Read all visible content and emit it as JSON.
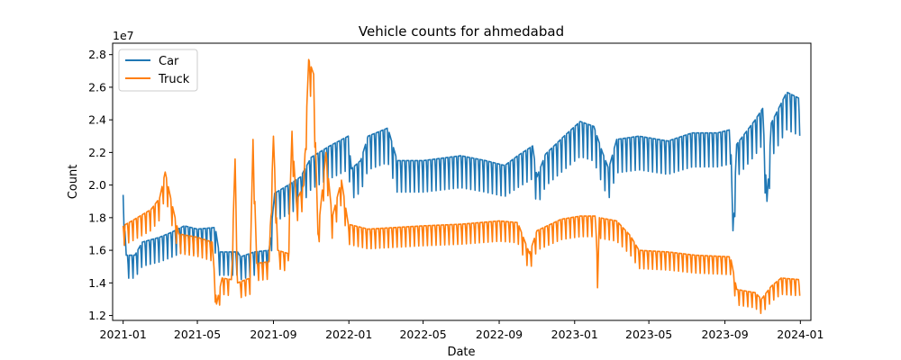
{
  "chart_data": {
    "type": "line",
    "title": "Vehicle counts for ahmedabad",
    "xlabel": "Date",
    "ylabel": "Count",
    "y_exponent_label": "1e7",
    "ylim": [
      11700000,
      28700000
    ],
    "xlim": [
      "2020-12-15",
      "2024-01-18"
    ],
    "x_ticks": [
      "2021-01",
      "2021-05",
      "2021-09",
      "2022-01",
      "2022-05",
      "2022-09",
      "2023-01",
      "2023-05",
      "2023-09",
      "2024-01"
    ],
    "y_ticks": [
      "1.2",
      "1.4",
      "1.6",
      "1.8",
      "2.0",
      "2.2",
      "2.4",
      "2.6",
      "2.8"
    ],
    "legend_position": "top-left",
    "grid": false,
    "series": [
      {
        "name": "Car",
        "color": "#1f77b4",
        "weekday_dip_pct": 9,
        "anchors": [
          [
            "2021-01-01",
            19400000
          ],
          [
            "2021-01-06",
            15700000
          ],
          [
            "2021-01-20",
            15700000
          ],
          [
            "2021-02-01",
            16500000
          ],
          [
            "2021-03-01",
            16800000
          ],
          [
            "2021-03-20",
            17100000
          ],
          [
            "2021-04-10",
            17500000
          ],
          [
            "2021-05-01",
            17300000
          ],
          [
            "2021-05-30",
            17400000
          ],
          [
            "2021-06-05",
            15900000
          ],
          [
            "2021-07-05",
            15900000
          ],
          [
            "2021-07-10",
            15600000
          ],
          [
            "2021-08-01",
            15900000
          ],
          [
            "2021-08-25",
            16000000
          ],
          [
            "2021-09-03",
            19500000
          ],
          [
            "2021-09-25",
            20000000
          ],
          [
            "2021-10-15",
            20500000
          ],
          [
            "2021-11-01",
            21700000
          ],
          [
            "2021-12-01",
            22400000
          ],
          [
            "2021-12-31",
            23000000
          ],
          [
            "2022-01-05",
            21000000
          ],
          [
            "2022-01-20",
            21500000
          ],
          [
            "2022-02-01",
            23000000
          ],
          [
            "2022-03-05",
            23500000
          ],
          [
            "2022-03-20",
            21500000
          ],
          [
            "2022-05-01",
            21500000
          ],
          [
            "2022-07-01",
            21800000
          ],
          [
            "2022-08-10",
            21500000
          ],
          [
            "2022-09-10",
            21200000
          ],
          [
            "2022-10-01",
            21800000
          ],
          [
            "2022-10-25",
            22400000
          ],
          [
            "2022-11-01",
            20500000
          ],
          [
            "2022-11-15",
            21900000
          ],
          [
            "2022-12-15",
            23000000
          ],
          [
            "2023-01-10",
            23900000
          ],
          [
            "2023-02-01",
            23600000
          ],
          [
            "2023-02-15",
            22000000
          ],
          [
            "2023-02-25",
            21000000
          ],
          [
            "2023-03-10",
            22800000
          ],
          [
            "2023-04-15",
            23000000
          ],
          [
            "2023-06-01",
            22700000
          ],
          [
            "2023-07-10",
            23200000
          ],
          [
            "2023-08-20",
            23200000
          ],
          [
            "2023-09-10",
            23400000
          ],
          [
            "2023-09-14",
            17200000
          ],
          [
            "2023-09-20",
            22500000
          ],
          [
            "2023-10-20",
            24000000
          ],
          [
            "2023-11-01",
            24700000
          ],
          [
            "2023-11-08",
            19000000
          ],
          [
            "2023-11-15",
            23800000
          ],
          [
            "2023-12-10",
            25700000
          ],
          [
            "2023-12-31",
            25300000
          ]
        ]
      },
      {
        "name": "Truck",
        "color": "#ff7f0e",
        "weekday_dip_pct": 7,
        "anchors": [
          [
            "2021-01-01",
            17500000
          ],
          [
            "2021-01-15",
            17800000
          ],
          [
            "2021-02-15",
            18500000
          ],
          [
            "2021-03-01",
            19200000
          ],
          [
            "2021-03-10",
            20800000
          ],
          [
            "2021-03-20",
            19000000
          ],
          [
            "2021-04-01",
            17000000
          ],
          [
            "2021-05-01",
            16800000
          ],
          [
            "2021-05-25",
            16500000
          ],
          [
            "2021-06-01",
            12700000
          ],
          [
            "2021-06-10",
            14300000
          ],
          [
            "2021-06-25",
            14200000
          ],
          [
            "2021-07-01",
            21600000
          ],
          [
            "2021-07-05",
            14000000
          ],
          [
            "2021-07-25",
            14300000
          ],
          [
            "2021-07-30",
            22800000
          ],
          [
            "2021-08-05",
            15200000
          ],
          [
            "2021-08-25",
            15300000
          ],
          [
            "2021-09-01",
            23000000
          ],
          [
            "2021-09-08",
            16000000
          ],
          [
            "2021-09-25",
            15800000
          ],
          [
            "2021-10-01",
            23300000
          ],
          [
            "2021-10-08",
            19000000
          ],
          [
            "2021-10-20",
            20000000
          ],
          [
            "2021-10-28",
            27700000
          ],
          [
            "2021-11-05",
            26800000
          ],
          [
            "2021-11-12",
            17000000
          ],
          [
            "2021-11-25",
            22000000
          ],
          [
            "2021-12-05",
            18000000
          ],
          [
            "2021-12-20",
            20300000
          ],
          [
            "2021-12-31",
            17600000
          ],
          [
            "2022-02-01",
            17300000
          ],
          [
            "2022-05-01",
            17500000
          ],
          [
            "2022-07-01",
            17600000
          ],
          [
            "2022-09-01",
            17800000
          ],
          [
            "2022-10-01",
            17700000
          ],
          [
            "2022-10-20",
            15800000
          ],
          [
            "2022-11-01",
            17200000
          ],
          [
            "2022-12-10",
            17900000
          ],
          [
            "2023-01-10",
            18100000
          ],
          [
            "2023-02-05",
            18100000
          ],
          [
            "2023-02-07",
            13700000
          ],
          [
            "2023-02-10",
            18000000
          ],
          [
            "2023-03-10",
            17800000
          ],
          [
            "2023-04-01",
            16900000
          ],
          [
            "2023-04-15",
            16000000
          ],
          [
            "2023-06-01",
            15900000
          ],
          [
            "2023-07-15",
            15700000
          ],
          [
            "2023-09-10",
            15600000
          ],
          [
            "2023-09-20",
            13600000
          ],
          [
            "2023-10-20",
            13400000
          ],
          [
            "2023-10-30",
            13000000
          ],
          [
            "2023-11-15",
            13800000
          ],
          [
            "2023-12-01",
            14300000
          ],
          [
            "2023-12-31",
            14200000
          ]
        ]
      }
    ]
  }
}
